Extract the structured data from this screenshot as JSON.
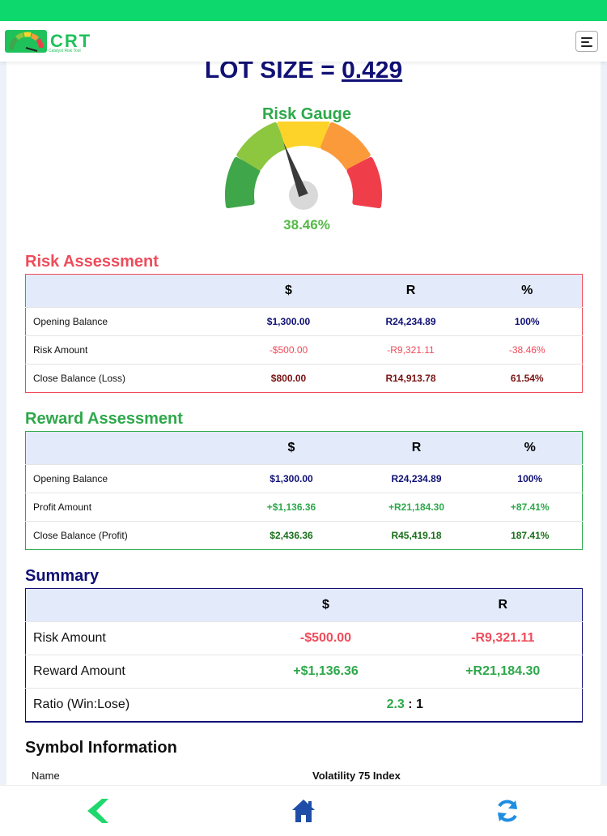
{
  "header": {
    "logo_text": "CRT",
    "logo_subtitle": "Catalyst Risk Tool",
    "menu_icon": "hamburger-icon"
  },
  "lot": {
    "label": "LOT SIZE = ",
    "value": "0.429"
  },
  "gauge": {
    "title": "Risk Gauge",
    "percent_text": "38.46%",
    "level_fraction": 0.3846,
    "segment_colors": [
      "#3fa64a",
      "#8dc63f",
      "#fdd32a",
      "#fb9a3b",
      "#ef3e4a"
    ]
  },
  "risk": {
    "title": "Risk Assessment",
    "columns": [
      "",
      "$",
      "R",
      "%"
    ],
    "rows": [
      {
        "label": "Opening Balance",
        "usd": "$1,300.00",
        "zar": "R24,234.89",
        "pct": "100%"
      },
      {
        "label": "Risk Amount",
        "usd": "-$500.00",
        "zar": "-R9,321.11",
        "pct": "-38.46%"
      },
      {
        "label": "Close Balance (Loss)",
        "usd": "$800.00",
        "zar": "R14,913.78",
        "pct": "61.54%"
      }
    ]
  },
  "reward": {
    "title": "Reward Assessment",
    "columns": [
      "",
      "$",
      "R",
      "%"
    ],
    "rows": [
      {
        "label": "Opening Balance",
        "usd": "$1,300.00",
        "zar": "R24,234.89",
        "pct": "100%"
      },
      {
        "label": "Profit Amount",
        "usd": "+$1,136.36",
        "zar": "+R21,184.30",
        "pct": "+87.41%"
      },
      {
        "label": "Close Balance (Profit)",
        "usd": "$2,436.36",
        "zar": "R45,419.18",
        "pct": "187.41%"
      }
    ]
  },
  "summary": {
    "title": "Summary",
    "columns": [
      "",
      "$",
      "R"
    ],
    "rows": [
      {
        "label": "Risk Amount",
        "usd": "-$500.00",
        "zar": "-R9,321.11"
      },
      {
        "label": "Reward Amount",
        "usd": "+$1,136.36",
        "zar": "+R21,184.30"
      }
    ],
    "ratio": {
      "label": "Ratio (Win:Lose)",
      "win": "2.3",
      "sep": " : ",
      "lose": "1"
    }
  },
  "symbol": {
    "title": "Symbol Information",
    "name_label": "Name",
    "name_value": "Volatility 75 Index"
  },
  "nav": {
    "back_icon": "chevron-left-icon",
    "home_icon": "home-icon",
    "refresh_icon": "refresh-icon",
    "colors": {
      "back": "#1fd86d",
      "home": "#1f4ea8",
      "refresh": "#1f8ee0"
    }
  }
}
